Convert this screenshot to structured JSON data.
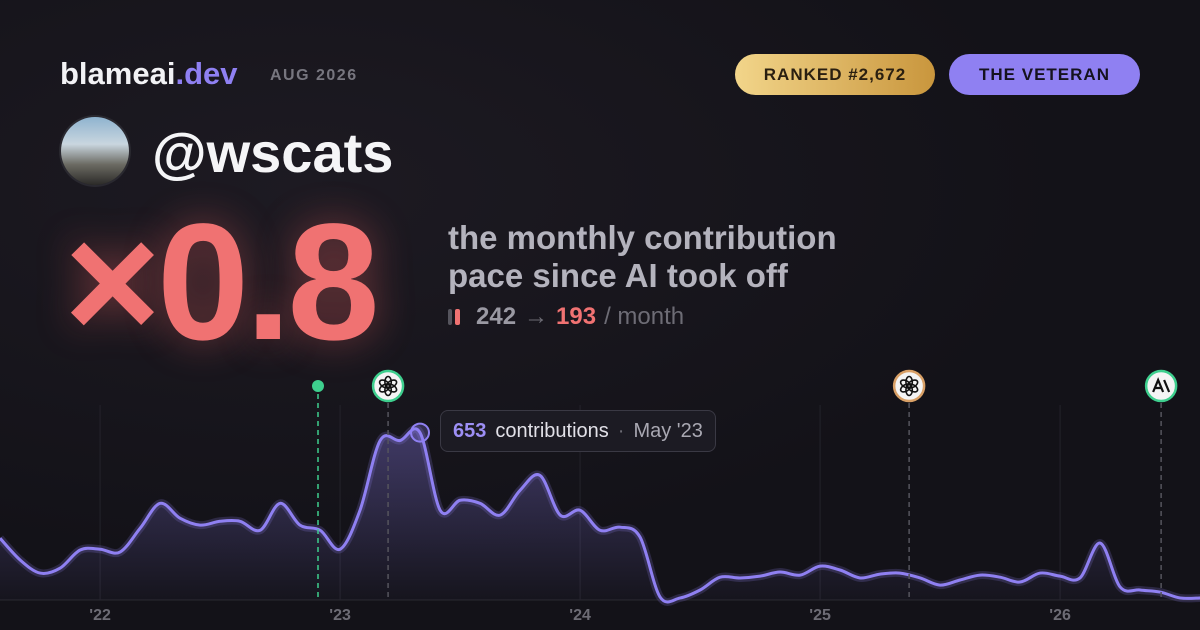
{
  "header": {
    "brand": "blameai",
    "brand_suffix": ".dev",
    "date": "AUG 2026",
    "rank_badge": "RANKED #2,672",
    "title_badge": "THE VETERAN"
  },
  "profile": {
    "handle": "@wscats"
  },
  "headline": {
    "multiplier": "×0.8",
    "description_line1": "the monthly contribution",
    "description_line2": "pace since AI took off",
    "before": "242",
    "arrow": "→",
    "after": "193",
    "unit": "/ month"
  },
  "chart_data": {
    "type": "line",
    "x": [
      2021.583,
      2021.667,
      2021.75,
      2021.833,
      2021.917,
      2022,
      2022.083,
      2022.167,
      2022.25,
      2022.333,
      2022.417,
      2022.5,
      2022.583,
      2022.667,
      2022.75,
      2022.833,
      2022.917,
      2023,
      2023.083,
      2023.167,
      2023.25,
      2023.333,
      2023.417,
      2023.5,
      2023.583,
      2023.667,
      2023.75,
      2023.833,
      2023.917,
      2024,
      2024.083,
      2024.167,
      2024.25,
      2024.333,
      2024.417,
      2024.5,
      2024.583,
      2024.667,
      2024.75,
      2024.833,
      2024.917,
      2025,
      2025.083,
      2025.167,
      2025.25,
      2025.333,
      2025.417,
      2025.5,
      2025.583,
      2025.667,
      2025.75,
      2025.833,
      2025.917,
      2026,
      2026.083,
      2026.167,
      2026.25,
      2026.333,
      2026.417,
      2026.5,
      2026.583
    ],
    "values": [
      241,
      156,
      105,
      124,
      195,
      198,
      187,
      280,
      377,
      319,
      292,
      307,
      307,
      272,
      377,
      292,
      272,
      198,
      350,
      622,
      622,
      653,
      350,
      389,
      377,
      331,
      428,
      486,
      331,
      350,
      272,
      284,
      245,
      12,
      8,
      39,
      89,
      86,
      93,
      109,
      97,
      132,
      117,
      86,
      101,
      105,
      86,
      58,
      78,
      97,
      89,
      70,
      105,
      93,
      86,
      222,
      51,
      39,
      31,
      8,
      8
    ],
    "color": "#8f80f2",
    "xlim": [
      2021.583,
      2026.583
    ],
    "xticks": [
      {
        "value": 2022,
        "label": "'22"
      },
      {
        "value": 2023,
        "label": "'23"
      },
      {
        "value": 2024,
        "label": "'24"
      },
      {
        "value": 2025,
        "label": "'25"
      },
      {
        "value": 2026,
        "label": "'26"
      }
    ],
    "ylim": [
      0,
      780
    ],
    "grid": true,
    "events": [
      {
        "x": 2022.908,
        "icon": "dot",
        "color": "#3ecf8e"
      },
      {
        "x": 2023.2,
        "icon": "openai",
        "color": "#3ecf8e"
      },
      {
        "x": 2025.371,
        "icon": "openai",
        "color": "#d9a066"
      },
      {
        "x": 2026.421,
        "icon": "anthropic",
        "color": "#3ecf8e"
      }
    ],
    "tooltip": {
      "index": 21,
      "label": "contributions",
      "separator": "·",
      "date": "May '23"
    }
  }
}
